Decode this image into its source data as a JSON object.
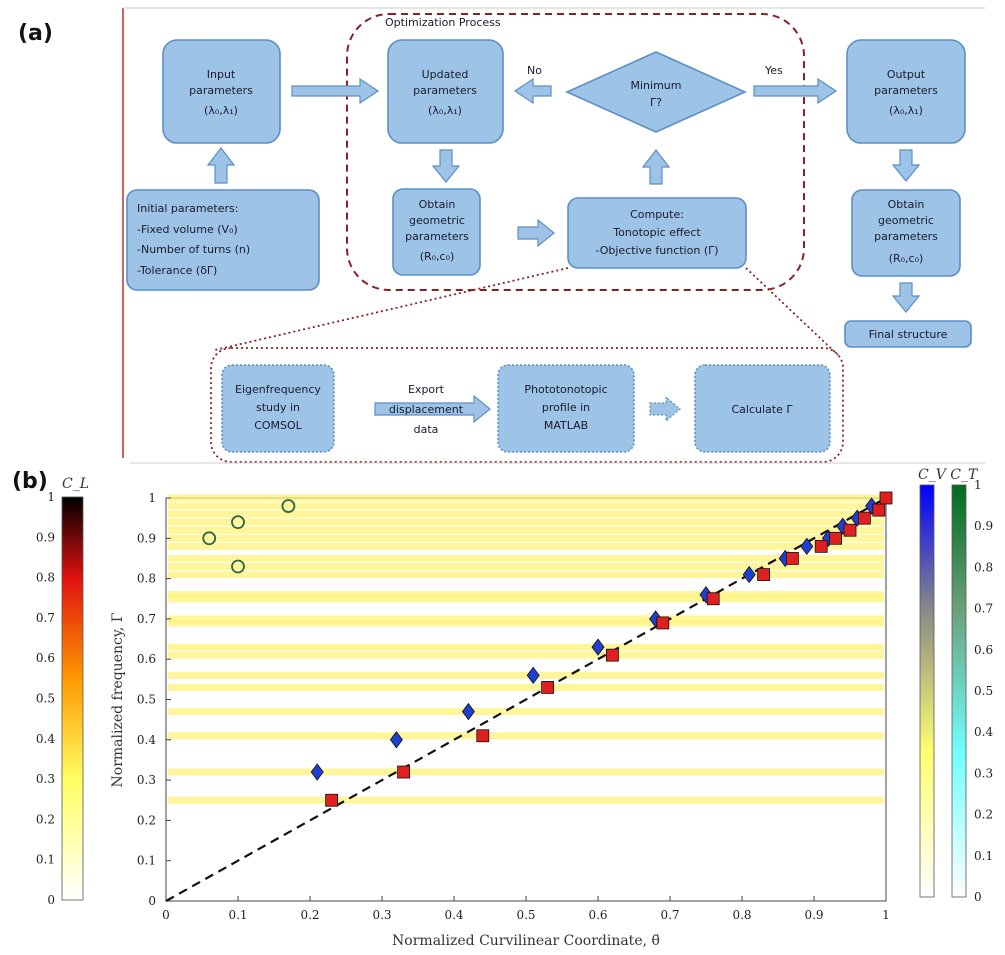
{
  "panel_a": {
    "label": "(a)",
    "opt_title": "Optimization Process",
    "input_box": [
      "Input",
      "parameters",
      "(λ₀,λ₁)"
    ],
    "updated_box": [
      "Updated",
      "parameters",
      "(λ₀,λ₁)"
    ],
    "decision": [
      "Minimum",
      "Γ?"
    ],
    "no_label": "No",
    "yes_label": "Yes",
    "output_box": [
      "Output",
      "parameters",
      "(λ₀,λ₁)"
    ],
    "initial_box": [
      "Initial parameters:",
      "-Fixed volume (V₀)",
      "-Number of turns (n)",
      "-Tolerance (δΓ)"
    ],
    "obtain_geo_mid": [
      "Obtain",
      "geometric",
      "parameters",
      "(R₀,c₀)"
    ],
    "compute_box": [
      "Compute:",
      "Tonotopic effect",
      "-Objective function (Γ)"
    ],
    "obtain_geo_right": [
      "Obtain",
      "geometric",
      "parameters",
      "(R₀,c₀)"
    ],
    "final_structure": "Final structure",
    "eigen_box": [
      "Eigenfrequency",
      "study in",
      "COMSOL"
    ],
    "export_label": [
      "Export",
      "displacement",
      "data"
    ],
    "phototonotopic_box": [
      "Phototonotopic",
      "profile in",
      "MATLAB"
    ],
    "calculate_box": "Calculate Γ"
  },
  "panel_b": {
    "label": "(b)",
    "left_colorbar_label": "C_L",
    "right_colorbar_label": "C_V  C_T",
    "colorbar_ticks": [
      "0",
      "0.1",
      "0.2",
      "0.3",
      "0.4",
      "0.5",
      "0.6",
      "0.7",
      "0.8",
      "0.9",
      "1"
    ]
  },
  "chart_data": {
    "type": "scatter",
    "xlabel": "Normalized Curvilinear Coordinate, θ̄",
    "ylabel": "Normalized frequency, Γ",
    "xlim": [
      0,
      1
    ],
    "ylim": [
      0,
      1
    ],
    "xticks": [
      "0",
      "0.1",
      "0.2",
      "0.3",
      "0.4",
      "0.5",
      "0.6",
      "0.7",
      "0.8",
      "0.9",
      "1"
    ],
    "yticks": [
      "0",
      "0.1",
      "0.2",
      "0.3",
      "0.4",
      "0.5",
      "0.6",
      "0.7",
      "0.8",
      "0.9",
      "1"
    ],
    "bands": [
      0.25,
      0.32,
      0.41,
      0.47,
      0.53,
      0.56,
      0.61,
      0.63,
      0.69,
      0.7,
      0.75,
      0.76,
      0.81,
      0.83,
      0.85,
      0.88,
      0.9,
      0.92,
      0.94,
      0.96,
      0.98,
      1.0
    ],
    "series": [
      {
        "marker": "diamond",
        "color": "#1f3fd0",
        "x": [
          0.21,
          0.32,
          0.42,
          0.51,
          0.6,
          0.68,
          0.75,
          0.81,
          0.86,
          0.89,
          0.92,
          0.94,
          0.96,
          0.98
        ],
        "y": [
          0.32,
          0.4,
          0.47,
          0.56,
          0.63,
          0.7,
          0.76,
          0.81,
          0.85,
          0.88,
          0.9,
          0.93,
          0.95,
          0.98
        ]
      },
      {
        "marker": "square",
        "color": "#e02020",
        "x": [
          0.23,
          0.33,
          0.44,
          0.53,
          0.62,
          0.69,
          0.76,
          0.83,
          0.87,
          0.91,
          0.93,
          0.95,
          0.97,
          0.99,
          1.0
        ],
        "y": [
          0.25,
          0.32,
          0.41,
          0.53,
          0.61,
          0.69,
          0.75,
          0.81,
          0.85,
          0.88,
          0.9,
          0.92,
          0.95,
          0.97,
          1.0
        ]
      },
      {
        "marker": "circle",
        "color": "#2e6b3a",
        "x": [
          0.17,
          0.1,
          0.06,
          0.1
        ],
        "y": [
          0.98,
          0.94,
          0.9,
          0.83
        ]
      }
    ],
    "trend_line": {
      "x": [
        0,
        1
      ],
      "y": [
        0,
        1
      ],
      "style": "dashed"
    }
  },
  "colors": {
    "box_fill": "#9dc3e6",
    "box_stroke": "#5b8fc7",
    "dashed_border": "#8b2020",
    "diamond": "#1f3fd0",
    "square": "#e02020",
    "circle": "#2e6b3a"
  }
}
